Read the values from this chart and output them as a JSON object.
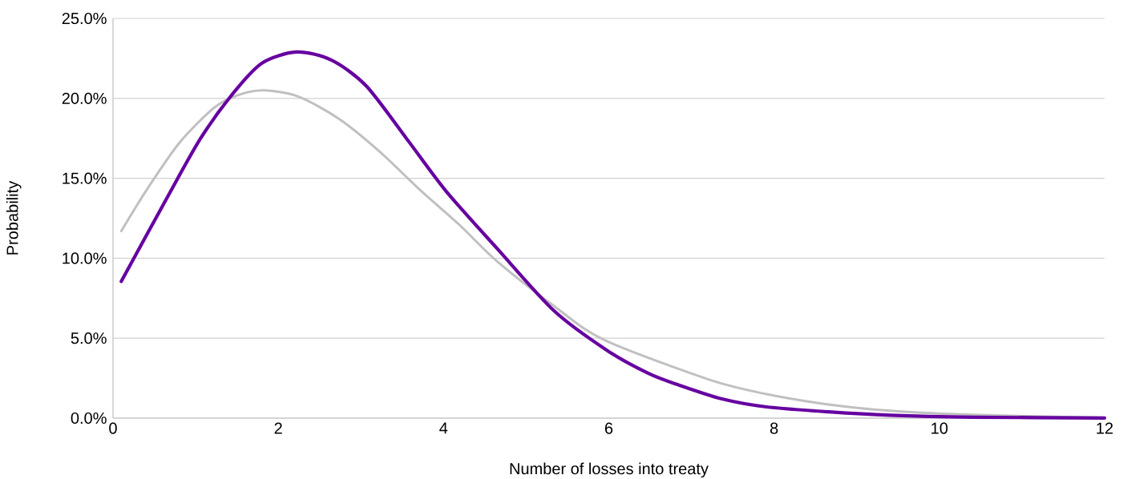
{
  "chart_data": {
    "type": "line",
    "xlabel": "Number of losses into treaty",
    "ylabel": "Probability",
    "xlim": [
      0,
      12
    ],
    "xticks": [
      0,
      2,
      4,
      6,
      8,
      10,
      12
    ],
    "ylim": [
      0,
      25
    ],
    "yticks": [
      {
        "value": 0,
        "label": "0.0%"
      },
      {
        "value": 5,
        "label": "5.0%"
      },
      {
        "value": 10,
        "label": "10.0%"
      },
      {
        "value": 15,
        "label": "15.0%"
      },
      {
        "value": 20,
        "label": "20.0%"
      },
      {
        "value": 25,
        "label": "25.0%"
      }
    ],
    "grid": "y",
    "series": [
      {
        "color": "#c0c0c0",
        "x": [
          0.1,
          0.41,
          0.8,
          1.22,
          1.51,
          1.83,
          2.25,
          2.74,
          3.22,
          3.71,
          4.19,
          4.65,
          5.34,
          5.94,
          7.22,
          7.91,
          8.66,
          9.4,
          10.4,
          11.38,
          12
        ],
        "values": [
          11.7,
          14.3,
          17.2,
          19.4,
          20.2,
          20.5,
          20.1,
          18.7,
          16.7,
          14.3,
          12.1,
          9.8,
          7.0,
          4.9,
          2.4,
          1.5,
          0.85,
          0.46,
          0.21,
          null,
          0.03
        ]
      },
      {
        "color": "#6600a0",
        "x": [
          0.1,
          0.64,
          1.06,
          1.45,
          1.8,
          2.22,
          2.64,
          3.06,
          3.55,
          4.03,
          4.65,
          5.34,
          5.99,
          6.48,
          6.83,
          7.37,
          7.91,
          8.66,
          9.4,
          10.4,
          12
        ],
        "values": [
          8.55,
          13.65,
          17.5,
          20.3,
          22.2,
          22.9,
          22.4,
          20.8,
          17.5,
          14.2,
          10.6,
          6.7,
          4.2,
          2.8,
          2.1,
          1.2,
          0.7,
          0.39,
          0.18,
          0.06,
          0.01
        ]
      }
    ]
  }
}
